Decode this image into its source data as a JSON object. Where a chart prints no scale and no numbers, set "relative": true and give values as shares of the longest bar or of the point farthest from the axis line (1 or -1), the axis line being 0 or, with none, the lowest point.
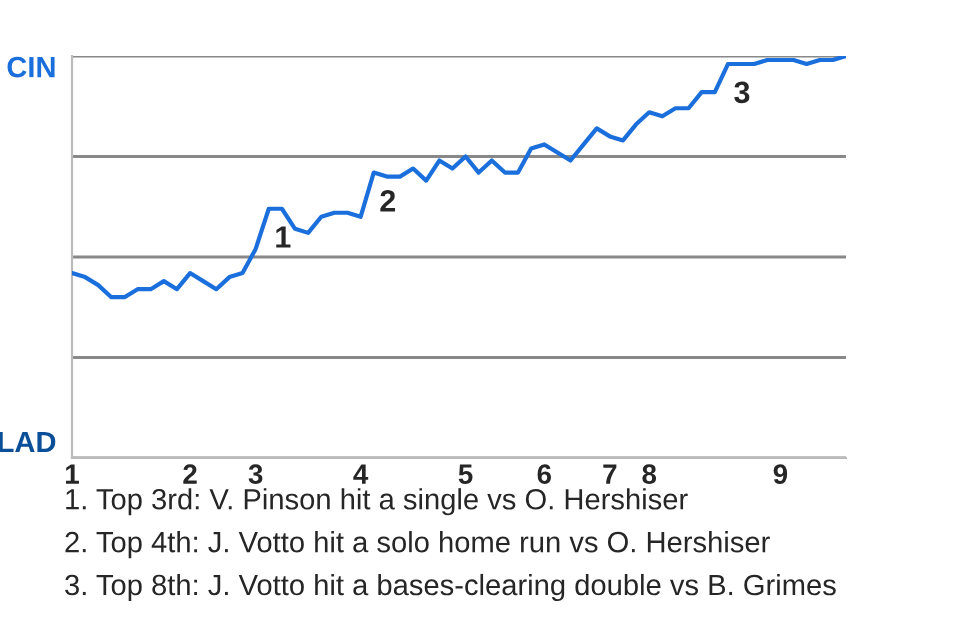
{
  "chart_data": {
    "type": "line",
    "relative": true,
    "categories": [
      "1",
      null,
      null,
      null,
      null,
      null,
      null,
      null,
      null,
      "2",
      null,
      null,
      null,
      null,
      "3",
      null,
      null,
      null,
      null,
      null,
      null,
      null,
      "4",
      null,
      null,
      null,
      null,
      null,
      null,
      null,
      "5",
      null,
      null,
      null,
      null,
      null,
      "6",
      null,
      null,
      null,
      null,
      "7",
      null,
      null,
      "8",
      null,
      null,
      null,
      null,
      null,
      null,
      null,
      null,
      null,
      "9",
      null,
      null,
      null,
      null,
      null
    ],
    "series": [
      {
        "color": "#1a6fdc",
        "values": [
          0.46,
          0.45,
          0.43,
          0.4,
          0.4,
          0.42,
          0.42,
          0.44,
          0.42,
          0.46,
          0.44,
          0.42,
          0.45,
          0.46,
          0.52,
          0.62,
          0.62,
          0.57,
          0.56,
          0.6,
          0.61,
          0.61,
          0.6,
          0.71,
          0.7,
          0.7,
          0.72,
          0.69,
          0.74,
          0.72,
          0.75,
          0.71,
          0.74,
          0.71,
          0.71,
          0.77,
          0.78,
          0.76,
          0.74,
          0.78,
          0.82,
          0.8,
          0.79,
          0.83,
          0.86,
          0.85,
          0.87,
          0.87,
          0.91,
          0.91,
          0.98,
          0.98,
          0.98,
          0.99,
          0.99,
          0.99,
          0.98,
          0.99,
          0.99,
          1.0
        ]
      }
    ],
    "grid": "y",
    "annotations": [
      "CIN",
      "LAD",
      "1",
      "2",
      "3",
      "1. Top 3rd: V. Pinson hit a single vs O. Hershiser",
      "2. Top 4th: J. Votto hit a solo home run vs O. Hershiser",
      "3. Top 8th: J. Votto hit a bases-clearing double vs B. Grimes"
    ]
  }
}
